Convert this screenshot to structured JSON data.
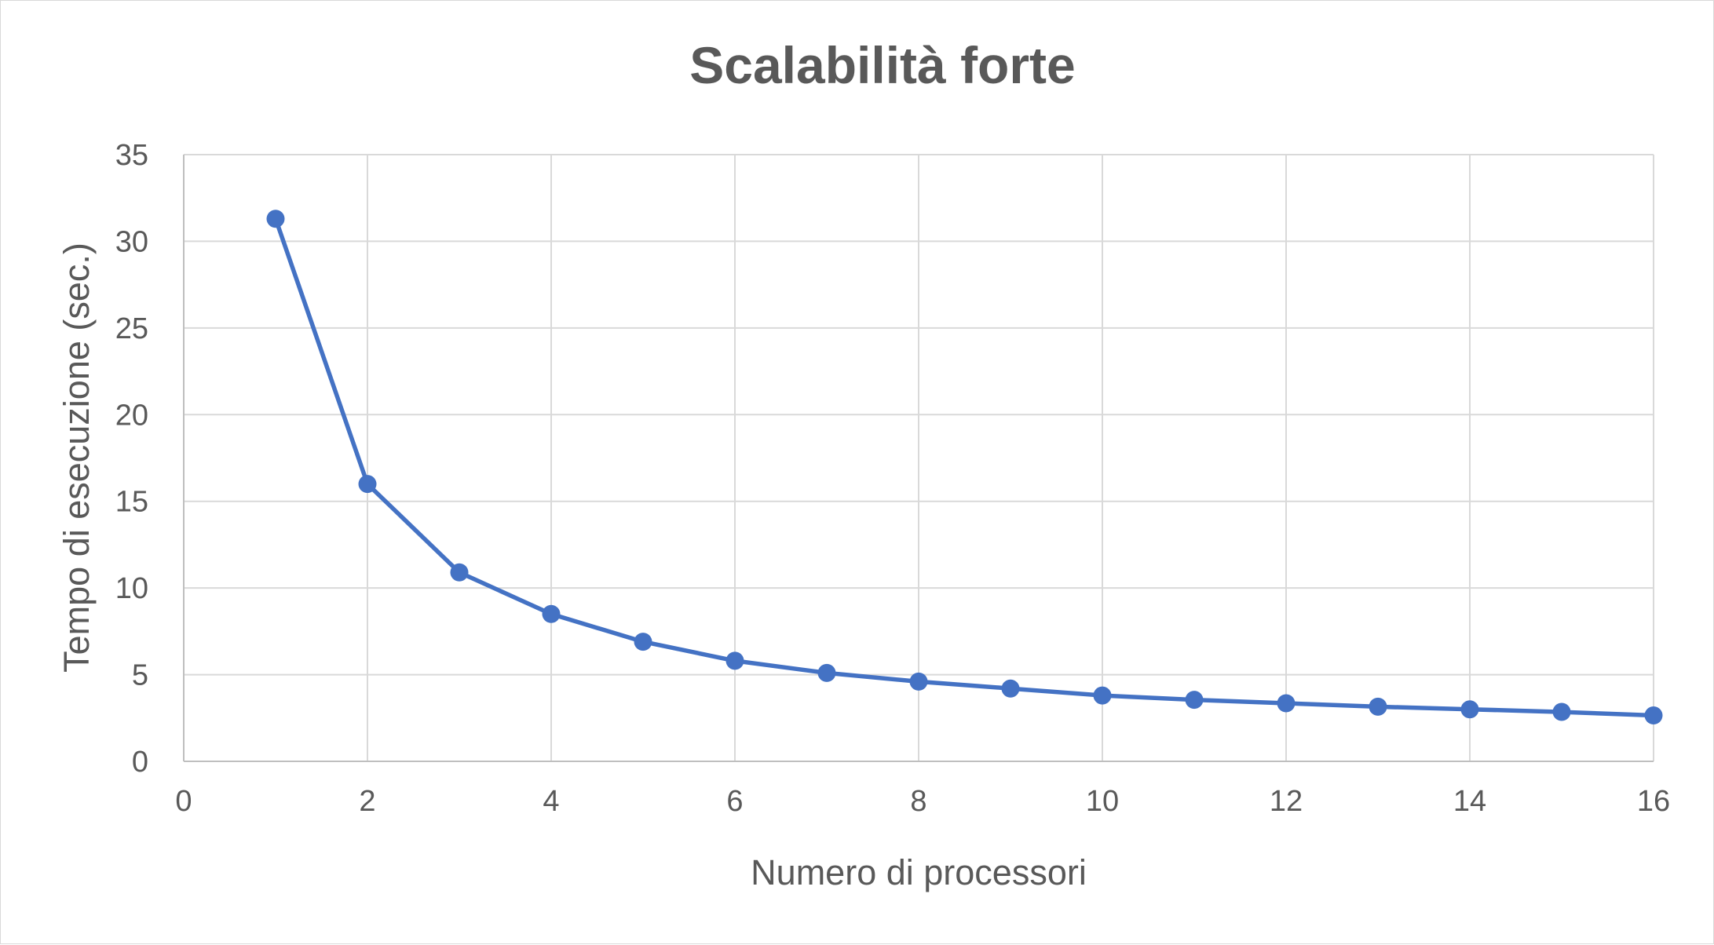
{
  "chart_data": {
    "type": "scatter",
    "title": "Scalabilità forte",
    "xlabel": "Numero di processori",
    "ylabel": "Tempo di esecuzione (sec.)",
    "xlim": [
      0,
      16
    ],
    "ylim": [
      0,
      35
    ],
    "xticks": [
      0,
      2,
      4,
      6,
      8,
      10,
      12,
      14,
      16
    ],
    "yticks": [
      0,
      5,
      10,
      15,
      20,
      25,
      30,
      35
    ],
    "grid": true,
    "legend": "none",
    "series": [
      {
        "color": "#4472c4",
        "marker": "circle",
        "line": "straight",
        "x": [
          1,
          2,
          3,
          4,
          5,
          6,
          7,
          8,
          9,
          10,
          11,
          12,
          13,
          14,
          15,
          16
        ],
        "y": [
          31.3,
          16.0,
          10.9,
          8.5,
          6.9,
          5.8,
          5.1,
          4.6,
          4.2,
          3.8,
          3.55,
          3.35,
          3.15,
          3.0,
          2.85,
          2.65
        ]
      }
    ]
  }
}
